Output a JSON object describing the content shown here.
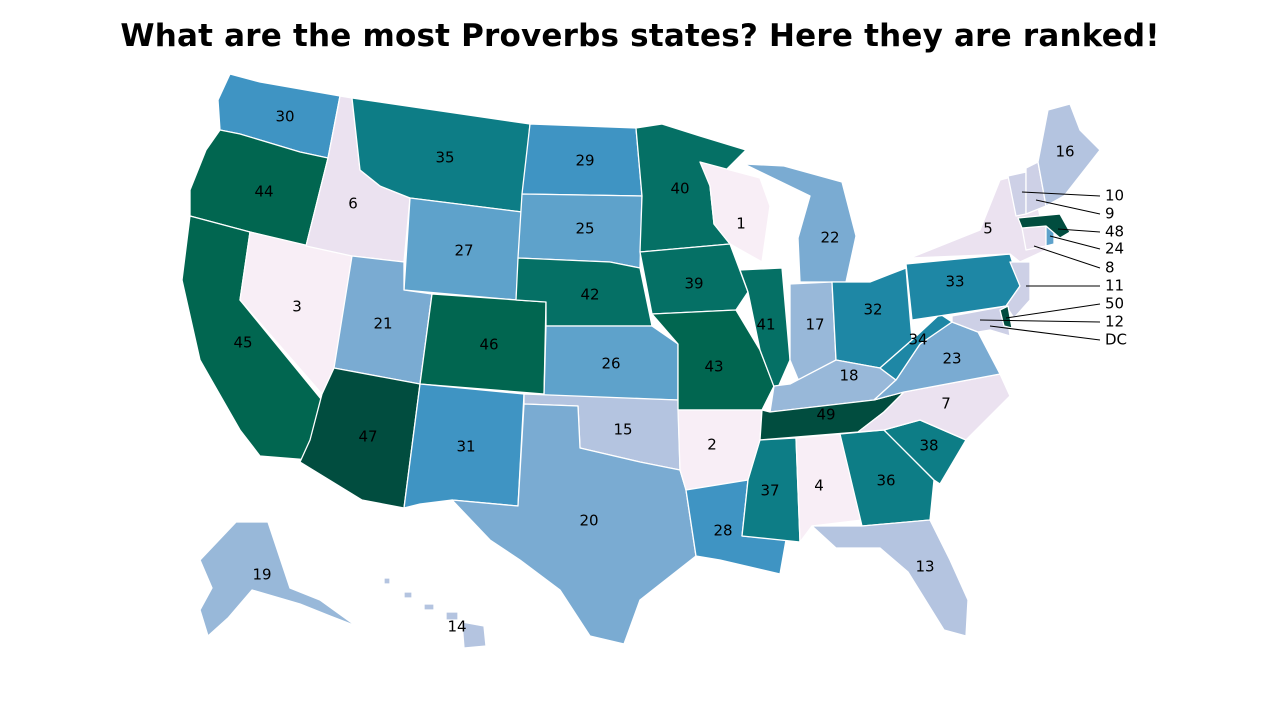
{
  "title": "What are the most Proverbs states? Here they are ranked!",
  "color_scale": [
    "#f8eef6",
    "#ebe2f0",
    "#cdd0e6",
    "#b4c4e0",
    "#98b8d9",
    "#7aabd2",
    "#5ea2cb",
    "#3f94c3",
    "#1e87a5",
    "#0d7d86",
    "#057065",
    "#016650",
    "#014d3f"
  ],
  "states": [
    {
      "code": "WA",
      "rank": "30"
    },
    {
      "code": "OR",
      "rank": "44"
    },
    {
      "code": "CA",
      "rank": "45"
    },
    {
      "code": "NV",
      "rank": "3"
    },
    {
      "code": "ID",
      "rank": "6"
    },
    {
      "code": "MT",
      "rank": "35"
    },
    {
      "code": "WY",
      "rank": "27"
    },
    {
      "code": "UT",
      "rank": "21"
    },
    {
      "code": "AZ",
      "rank": "47"
    },
    {
      "code": "CO",
      "rank": "46"
    },
    {
      "code": "NM",
      "rank": "31"
    },
    {
      "code": "ND",
      "rank": "29"
    },
    {
      "code": "SD",
      "rank": "25"
    },
    {
      "code": "NE",
      "rank": "42"
    },
    {
      "code": "KS",
      "rank": "26"
    },
    {
      "code": "OK",
      "rank": "15"
    },
    {
      "code": "TX",
      "rank": "20"
    },
    {
      "code": "MN",
      "rank": "40"
    },
    {
      "code": "IA",
      "rank": "39"
    },
    {
      "code": "MO",
      "rank": "43"
    },
    {
      "code": "AR",
      "rank": "2"
    },
    {
      "code": "LA",
      "rank": "28"
    },
    {
      "code": "WI",
      "rank": "1"
    },
    {
      "code": "IL",
      "rank": "41"
    },
    {
      "code": "MI",
      "rank": "22"
    },
    {
      "code": "IN",
      "rank": "17"
    },
    {
      "code": "OH",
      "rank": "32"
    },
    {
      "code": "KY",
      "rank": "18"
    },
    {
      "code": "TN",
      "rank": "49"
    },
    {
      "code": "MS",
      "rank": "37"
    },
    {
      "code": "AL",
      "rank": "4"
    },
    {
      "code": "GA",
      "rank": "36"
    },
    {
      "code": "FL",
      "rank": "13"
    },
    {
      "code": "SC",
      "rank": "38"
    },
    {
      "code": "NC",
      "rank": "7"
    },
    {
      "code": "VA",
      "rank": "23"
    },
    {
      "code": "WV",
      "rank": "34"
    },
    {
      "code": "PA",
      "rank": "33"
    },
    {
      "code": "NY",
      "rank": "5"
    },
    {
      "code": "ME",
      "rank": "16"
    },
    {
      "code": "AK",
      "rank": "19"
    },
    {
      "code": "HI",
      "rank": "14"
    },
    {
      "code": "VT",
      "rank": "10"
    },
    {
      "code": "NH",
      "rank": "9"
    },
    {
      "code": "MA",
      "rank": "48"
    },
    {
      "code": "RI",
      "rank": "24"
    },
    {
      "code": "CT",
      "rank": "8"
    },
    {
      "code": "NJ",
      "rank": "11"
    },
    {
      "code": "DE",
      "rank": "50"
    },
    {
      "code": "MD",
      "rank": "12"
    },
    {
      "code": "DC",
      "rank": "DC"
    }
  ]
}
